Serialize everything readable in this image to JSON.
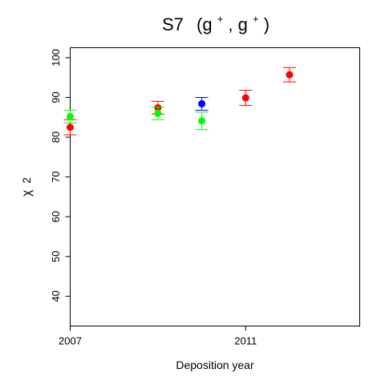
{
  "chart_data": {
    "type": "scatter",
    "title_main": "S7",
    "title_paren_open": "(g",
    "title_sup1": "+",
    "title_comma": ", g",
    "title_sup2": "+",
    "title_paren_close": ")",
    "xlabel": "Deposition year",
    "ylabel_greek": "χ",
    "ylabel_num": "2",
    "xlim": [
      2007,
      2013.6
    ],
    "ylim": [
      32.5,
      102.5
    ],
    "x_ticks": [
      2007,
      2011
    ],
    "x_tick_labels": [
      "2007",
      "2011"
    ],
    "y_ticks": [
      40,
      50,
      60,
      70,
      80,
      90,
      100
    ],
    "y_tick_labels": [
      "40",
      "50",
      "60",
      "70",
      "80",
      "90",
      "100"
    ],
    "grid": false,
    "series": [
      {
        "color": "#ff0000",
        "points": [
          {
            "x": 2007.0,
            "y": 82.5,
            "lo": 80.6,
            "hi": 84.4
          },
          {
            "x": 2009.0,
            "y": 87.4,
            "lo": 85.8,
            "hi": 89.0
          },
          {
            "x": 2011.0,
            "y": 89.9,
            "lo": 88.0,
            "hi": 91.8
          },
          {
            "x": 2012.0,
            "y": 95.7,
            "lo": 93.9,
            "hi": 97.5
          }
        ]
      },
      {
        "color": "#00ff00",
        "points": [
          {
            "x": 2007.0,
            "y": 85.2,
            "lo": 83.6,
            "hi": 86.8
          },
          {
            "x": 2009.0,
            "y": 86.0,
            "lo": 84.4,
            "hi": 87.6
          },
          {
            "x": 2010.0,
            "y": 84.1,
            "lo": 81.9,
            "hi": 86.3
          }
        ]
      },
      {
        "color": "#0000ff",
        "points": [
          {
            "x": 2010.0,
            "y": 88.4,
            "lo": 86.8,
            "hi": 90.0
          }
        ]
      }
    ]
  }
}
